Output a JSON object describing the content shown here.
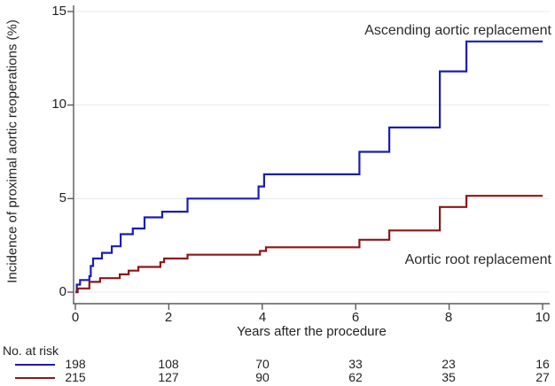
{
  "chart_data": {
    "type": "line",
    "subtype": "step-cumulative-incidence",
    "title": "",
    "xlabel": "Years after the procedure",
    "ylabel": "Incidence of proximal aortic reoperations (%)",
    "xlim": [
      0,
      10
    ],
    "ylim": [
      0,
      15
    ],
    "x_ticks": [
      0,
      2,
      4,
      6,
      8,
      10
    ],
    "y_ticks": [
      0,
      5,
      10,
      15
    ],
    "grid": true,
    "grid_color": "#e4ecf2",
    "axis_color": "#5a5a5a",
    "legend_position": "labels-inside-plot",
    "series": [
      {
        "name": "Ascending aortic replacement",
        "color": "#1c1cb4",
        "steps": [
          [
            0,
            0
          ],
          [
            0.03,
            0.4
          ],
          [
            0.1,
            0.65
          ],
          [
            0.3,
            0.85
          ],
          [
            0.33,
            1.4
          ],
          [
            0.38,
            1.8
          ],
          [
            0.57,
            2.1
          ],
          [
            0.78,
            2.45
          ],
          [
            0.97,
            3.1
          ],
          [
            1.23,
            3.4
          ],
          [
            1.48,
            4.0
          ],
          [
            1.86,
            4.3
          ],
          [
            2.4,
            5.0
          ],
          [
            3.92,
            5.65
          ],
          [
            4.04,
            6.3
          ],
          [
            6.08,
            7.5
          ],
          [
            6.72,
            8.8
          ],
          [
            7.8,
            11.8
          ],
          [
            8.37,
            13.4
          ],
          [
            10,
            13.4
          ]
        ]
      },
      {
        "name": "Aortic root replacement",
        "color": "#8e1616",
        "steps": [
          [
            0,
            0
          ],
          [
            0.05,
            0.2
          ],
          [
            0.3,
            0.55
          ],
          [
            0.53,
            0.75
          ],
          [
            0.95,
            0.95
          ],
          [
            1.14,
            1.15
          ],
          [
            1.35,
            1.35
          ],
          [
            1.82,
            1.6
          ],
          [
            1.9,
            1.8
          ],
          [
            2.4,
            2.0
          ],
          [
            3.95,
            2.2
          ],
          [
            4.08,
            2.4
          ],
          [
            6.08,
            2.8
          ],
          [
            6.72,
            3.3
          ],
          [
            7.8,
            4.55
          ],
          [
            8.37,
            5.15
          ],
          [
            10,
            5.15
          ]
        ]
      }
    ]
  },
  "risk_table": {
    "label": "No. at risk",
    "rows": [
      {
        "series": "Ascending aortic replacement",
        "color": "#1c1cb4",
        "counts": [
          "198",
          "108",
          "70",
          "33",
          "23",
          "16"
        ]
      },
      {
        "series": "Aortic root replacement",
        "color": "#8e1616",
        "counts": [
          "215",
          "127",
          "90",
          "62",
          "35",
          "27"
        ]
      }
    ]
  }
}
